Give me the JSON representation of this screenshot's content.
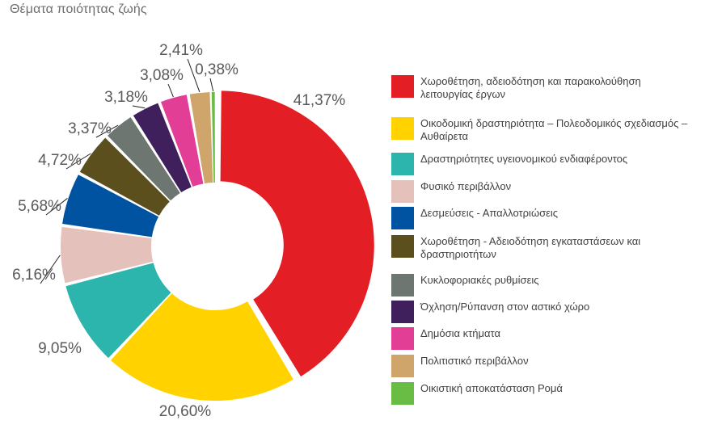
{
  "title": "Θέματα ποιότητας ζωής",
  "chart_data": {
    "type": "pie",
    "subtype": "donut",
    "title": "Θέματα ποιότητας ζωής",
    "legend_position": "right",
    "slices": [
      {
        "label": "Χωροθέτηση, αδειοδότηση και παρακολούθηση λειτουργίας έργων",
        "value": 41.37,
        "value_label": "41,37%",
        "color": "#e31e24"
      },
      {
        "label": "Οικοδομική δραστηριότητα – Πολεοδομικός σχεδιασμός – Αυθαίρετα",
        "value": 20.6,
        "value_label": "20,60%",
        "color": "#ffd200"
      },
      {
        "label": "Δραστηριότητες υγειονομικού ενδιαφέροντος",
        "value": 9.05,
        "value_label": "9,05%",
        "color": "#2cb5ac"
      },
      {
        "label": "Φυσικό περιβάλλον",
        "value": 6.16,
        "value_label": "6,16%",
        "color": "#e5c1bb"
      },
      {
        "label": "Δεσμεύσεις - Απαλλοτριώσεις",
        "value": 5.68,
        "value_label": "5,68%",
        "color": "#0053a0"
      },
      {
        "label": "Χωροθέτηση - Αδειοδότηση εγκαταστάσεων και δραστηριοτήτων",
        "value": 4.72,
        "value_label": "4,72%",
        "color": "#5c4f1e"
      },
      {
        "label": "Κυκλοφοριακές ρυθμίσεις",
        "value": 3.37,
        "value_label": "3,37%",
        "color": "#6d7670"
      },
      {
        "label": "Όχληση/Ρύπανση στον αστικό χώρο",
        "value": 3.18,
        "value_label": "3,18%",
        "color": "#3f1f5c"
      },
      {
        "label": "Δημόσια κτήματα",
        "value": 3.08,
        "value_label": "3,08%",
        "color": "#e23e96"
      },
      {
        "label": "Πολιτιστικό περιβάλλον",
        "value": 2.41,
        "value_label": "2,41%",
        "color": "#cfa56b"
      },
      {
        "label": "Οικιστική αποκατάσταση Ρομά",
        "value": 0.38,
        "value_label": "0,38%",
        "color": "#69bd45"
      }
    ]
  }
}
